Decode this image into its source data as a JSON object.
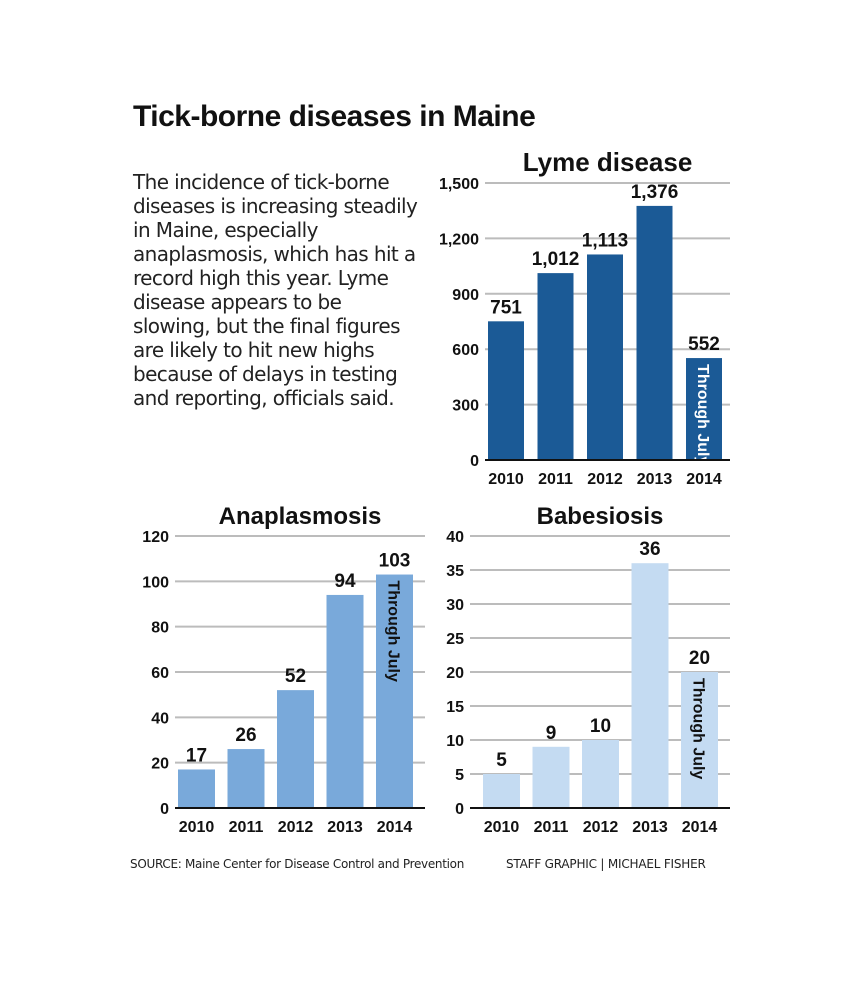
{
  "headline": "Tick-borne diseases in Maine",
  "intro": "The incidence of tick-borne diseases is increasing steadily in Maine, especially anaplasmosis, which has hit a record high this year. Lyme disease appears to be slowing, but the final figures are likely to hit new highs because of delays in testing and reporting, officials said.",
  "source": "SOURCE: Maine Center for Disease Control and Prevention",
  "credit": "STAFF GRAPHIC | MICHAEL FISHER",
  "chart_data": [
    {
      "id": "lyme",
      "type": "bar",
      "title": "Lyme disease",
      "categories": [
        "2010",
        "2011",
        "2012",
        "2013",
        "2014"
      ],
      "values": [
        751,
        1012,
        1113,
        1376,
        552
      ],
      "value_labels": [
        "751",
        "1,012",
        "1,113",
        "1,376",
        "552"
      ],
      "yticks": [
        0,
        300,
        600,
        900,
        1200,
        1500
      ],
      "ytick_labels": [
        "0",
        "300",
        "600",
        "900",
        "1,200",
        "1,500"
      ],
      "ylim": [
        0,
        1500
      ],
      "bar_note": "Through July",
      "color": "#1b5a96",
      "grid": true
    },
    {
      "id": "anaplasmosis",
      "type": "bar",
      "title": "Anaplasmosis",
      "categories": [
        "2010",
        "2011",
        "2012",
        "2013",
        "2014"
      ],
      "values": [
        17,
        26,
        52,
        94,
        103
      ],
      "value_labels": [
        "17",
        "26",
        "52",
        "94",
        "103"
      ],
      "yticks": [
        0,
        20,
        40,
        60,
        80,
        100,
        120
      ],
      "ytick_labels": [
        "0",
        "20",
        "40",
        "60",
        "80",
        "100",
        "120"
      ],
      "ylim": [
        0,
        120
      ],
      "bar_note": "Through July",
      "color": "#79a9da",
      "grid": true
    },
    {
      "id": "babesiosis",
      "type": "bar",
      "title": "Babesiosis",
      "categories": [
        "2010",
        "2011",
        "2012",
        "2013",
        "2014"
      ],
      "values": [
        5,
        9,
        10,
        36,
        20
      ],
      "value_labels": [
        "5",
        "9",
        "10",
        "36",
        "20"
      ],
      "yticks": [
        0,
        5,
        10,
        15,
        20,
        25,
        30,
        35,
        40
      ],
      "ytick_labels": [
        "0",
        "5",
        "10",
        "15",
        "20",
        "25",
        "30",
        "35",
        "40"
      ],
      "ylim": [
        0,
        40
      ],
      "bar_note": "Through July",
      "color": "#c4dbf2",
      "grid": true
    }
  ]
}
